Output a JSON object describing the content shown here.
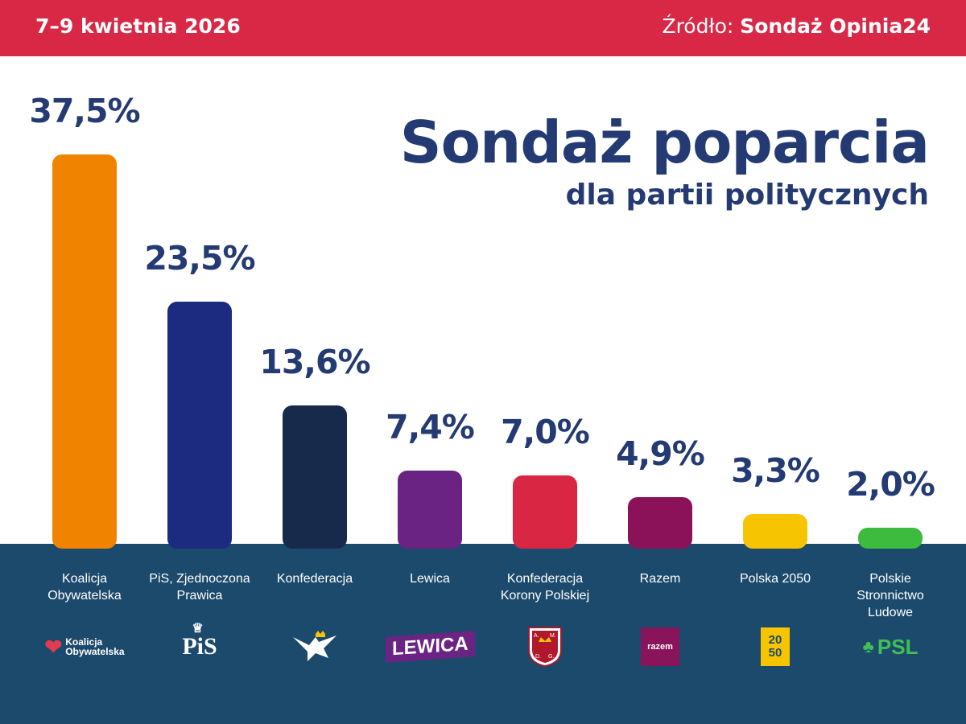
{
  "header": {
    "date": "7–9 kwietnia 2026",
    "source_label": "Źródło:",
    "source_name": "Sondaż Opinia24"
  },
  "chart_data": {
    "type": "bar",
    "title": "Sondaż poparcia",
    "subtitle": "dla partii politycznych",
    "categories": [
      "Koalicja Obywatelska",
      "PiS, Zjednoczona Prawica",
      "Konfederacja",
      "Lewica",
      "Konfederacja Korony Polskiej",
      "Razem",
      "Polska 2050",
      "Polskie Stronnictwo Ludowe"
    ],
    "values": [
      37.5,
      23.5,
      13.6,
      7.4,
      7.0,
      4.9,
      3.3,
      2.0
    ],
    "value_labels": [
      "37,5%",
      "23,5%",
      "13,6%",
      "7,4%",
      "7,0%",
      "4,9%",
      "3,3%",
      "2,0%"
    ],
    "colors": [
      "#f08400",
      "#1c2a80",
      "#172a4b",
      "#6a2383",
      "#d92743",
      "#8b1259",
      "#f6c400",
      "#3dbb3f"
    ],
    "ylim": [
      0,
      37.5
    ],
    "grid": false,
    "legend": "none"
  },
  "category_labels": [
    [
      "Koalicja",
      "Obywatelska"
    ],
    [
      "PiS, Zjednoczona",
      "Prawica"
    ],
    [
      "Konfederacja"
    ],
    [
      "Lewica"
    ],
    [
      "Konfederacja",
      "Korony Polskiej"
    ],
    [
      "Razem"
    ],
    [
      "Polska 2050"
    ],
    [
      "Polskie",
      "Stronnictwo",
      "Ludowe"
    ]
  ],
  "logos": [
    {
      "icon": "koalicja-obywatelska-logo",
      "text": [
        "Koalicja",
        "Obywatelska"
      ]
    },
    {
      "icon": "pis-logo",
      "text": [
        "PiS"
      ]
    },
    {
      "icon": "konfederacja-eagle-logo",
      "text": []
    },
    {
      "icon": "lewica-logo",
      "text": [
        "LEWICA"
      ]
    },
    {
      "icon": "korona-crest-logo",
      "text": [
        "A.",
        "M.",
        "D.",
        "G."
      ]
    },
    {
      "icon": "razem-logo",
      "text": [
        "razem"
      ]
    },
    {
      "icon": "polska-2050-logo",
      "text": [
        "20",
        "50"
      ]
    },
    {
      "icon": "psl-logo",
      "text": [
        "PSL"
      ]
    }
  ]
}
